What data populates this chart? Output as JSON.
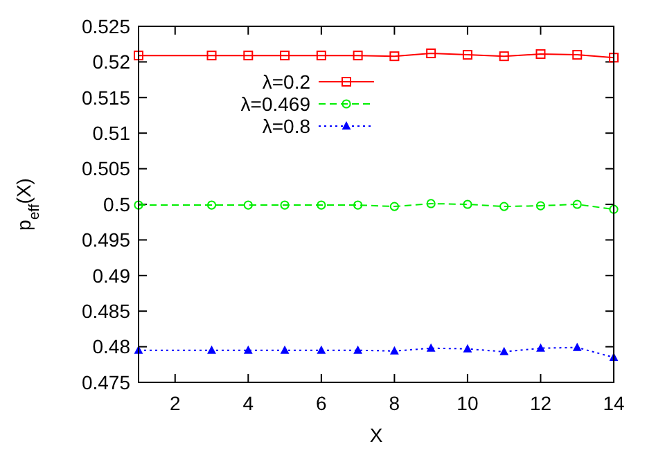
{
  "chart_data": {
    "type": "line",
    "xlabel": "X",
    "ylabel": "p$_{eff}$(X)",
    "x": [
      1,
      3,
      4,
      5,
      6,
      7,
      8,
      9,
      10,
      11,
      12,
      13,
      14
    ],
    "series": [
      {
        "name": "λ=0.2",
        "color": "#ff0000",
        "line_style": "solid",
        "marker": "square",
        "values": [
          0.5209,
          0.5209,
          0.5209,
          0.5209,
          0.5209,
          0.5209,
          0.5208,
          0.5212,
          0.521,
          0.5208,
          0.5211,
          0.521,
          0.5206
        ]
      },
      {
        "name": "λ=0.469",
        "color": "#00ee00",
        "line_style": "dashed",
        "marker": "circle",
        "values": [
          0.4999,
          0.4999,
          0.4999,
          0.4999,
          0.4999,
          0.4999,
          0.4997,
          0.5001,
          0.5,
          0.4997,
          0.4998,
          0.5,
          0.4993
        ]
      },
      {
        "name": "λ=0.8",
        "color": "#0000ff",
        "line_style": "dotted",
        "marker": "triangle",
        "values": [
          0.4795,
          0.4795,
          0.4795,
          0.4795,
          0.4795,
          0.4795,
          0.4794,
          0.4798,
          0.4797,
          0.4793,
          0.4798,
          0.4799,
          0.4785
        ]
      }
    ],
    "xlim": [
      1,
      14
    ],
    "xticks": [
      2,
      4,
      6,
      8,
      10,
      12,
      14
    ],
    "ylim": [
      0.475,
      0.525
    ],
    "yticks": [
      0.475,
      0.48,
      0.485,
      0.49,
      0.495,
      0.5,
      0.505,
      0.51,
      0.515,
      0.52,
      0.525
    ],
    "grid": false,
    "legend": "top left"
  }
}
